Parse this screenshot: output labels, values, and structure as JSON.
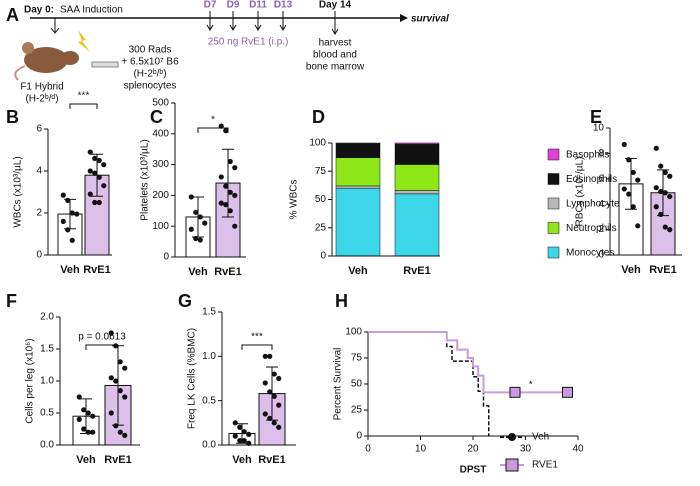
{
  "diagram": {
    "panel": "A",
    "day0_bold": "Day 0:",
    "day0_text": "SAA Induction",
    "days": [
      "D7",
      "D9",
      "D11",
      "D13"
    ],
    "day14": "Day 14",
    "survival": "survival",
    "treatment": "250 ng RvE1 (i.p.)",
    "harvest": [
      "harvest",
      "blood and",
      "bone marrow"
    ],
    "irradiation": [
      "300 Rads",
      "+ 6.5x10⁷ B6",
      "(H-2ᵇ/ᵇ)",
      "splenocytes"
    ],
    "mouse": [
      "F1 Hybrid",
      "(H-2ᵇ/ᵈ)"
    ]
  },
  "chart_data": [
    {
      "type": "bar",
      "panel": "B",
      "ylabel": "WBCs (x10³/µL)",
      "categories": [
        "Veh",
        "RvE1"
      ],
      "colors": [
        "#ffffff",
        "#dcc0ea"
      ],
      "values": [
        1.95,
        3.8
      ],
      "errors": [
        0.7,
        1.0
      ],
      "points": [
        [
          2.85,
          2.6,
          2.0,
          1.95,
          1.6,
          1.2,
          0.7
        ],
        [
          4.9,
          4.6,
          4.5,
          4.3,
          4.0,
          3.9,
          3.7,
          3.3,
          2.9,
          2.5,
          2.5
        ]
      ],
      "significance": "***",
      "ylim": [
        0,
        6
      ],
      "yticks": [
        0,
        2,
        4,
        6
      ]
    },
    {
      "type": "bar",
      "panel": "C",
      "ylabel": "Platelets (x10³/µL)",
      "categories": [
        "Veh",
        "RvE1"
      ],
      "colors": [
        "#ffffff",
        "#dcc0ea"
      ],
      "values": [
        130,
        240
      ],
      "errors": [
        65,
        110
      ],
      "points": [
        [
          195,
          145,
          130,
          110,
          90,
          60,
          55
        ],
        [
          425,
          410,
          310,
          290,
          260,
          230,
          210,
          200,
          175,
          170,
          150,
          100
        ]
      ],
      "significance": "*",
      "ylim": [
        0,
        500
      ],
      "yticks": [
        0,
        100,
        200,
        300,
        400,
        500
      ]
    },
    {
      "type": "stacked_bar",
      "panel": "D",
      "ylabel": "% WBCs",
      "categories": [
        "Veh",
        "RvE1"
      ],
      "series": [
        {
          "name": "Monocytes",
          "color": "#3dd6e8",
          "values": [
            60,
            55
          ]
        },
        {
          "name": "Lymphocytes",
          "color": "#b8b8b8",
          "values": [
            2,
            3
          ]
        },
        {
          "name": "Neutrophils",
          "color": "#8ee817",
          "values": [
            25,
            23
          ]
        },
        {
          "name": "Eosinophils",
          "color": "#111111",
          "values": [
            12.5,
            18
          ]
        },
        {
          "name": "Basophils",
          "color": "#e040d8",
          "values": [
            0.5,
            1
          ]
        }
      ],
      "legend_order": [
        4,
        3,
        1,
        2,
        0
      ],
      "ylim": [
        0,
        100
      ],
      "yticks": [
        0,
        25,
        50,
        75,
        100
      ]
    },
    {
      "type": "bar",
      "panel": "E",
      "ylabel": "RBCs (x10⁶/µL)",
      "categories": [
        "Veh",
        "RvE1"
      ],
      "colors": [
        "#ffffff",
        "#dcc0ea"
      ],
      "values": [
        5.6,
        4.9
      ],
      "errors": [
        2.0,
        1.8
      ],
      "points": [
        [
          8.7,
          7.5,
          6.5,
          5.9,
          5.2,
          4.8,
          3.8,
          2.3
        ],
        [
          8.4,
          7.0,
          6.5,
          6.2,
          5.3,
          5.0,
          4.9,
          4.6,
          3.8,
          3.2,
          2.2,
          2.0
        ]
      ],
      "ylim": [
        0,
        10
      ],
      "yticks": [
        0,
        2,
        4,
        6,
        8,
        10
      ]
    },
    {
      "type": "bar",
      "panel": "F",
      "ylabel": "Cells per leg (x10⁶)",
      "categories": [
        "Veh",
        "RvE1"
      ],
      "colors": [
        "#ffffff",
        "#dcc0ea"
      ],
      "values": [
        0.45,
        0.93
      ],
      "errors": [
        0.27,
        0.62
      ],
      "points": [
        [
          0.75,
          0.55,
          0.5,
          0.45,
          0.4,
          0.25,
          0.2,
          0.2
        ],
        [
          1.75,
          1.55,
          1.3,
          1.2,
          1.05,
          1.0,
          0.85,
          0.75,
          0.5,
          0.3,
          0.2,
          0.15
        ]
      ],
      "significance": "p = 0.0613",
      "ylim": [
        0,
        2
      ],
      "yticks": [
        {
          "value": 0,
          "label": "0.0"
        },
        {
          "value": 0.5,
          "label": "0.5"
        },
        {
          "value": 1,
          "label": "1.0"
        },
        {
          "value": 1.5,
          "label": "1.5"
        },
        {
          "value": 2,
          "label": "2.0"
        }
      ]
    },
    {
      "type": "bar",
      "panel": "G",
      "ylabel": "Freq LK Cells (%BMC)",
      "categories": [
        "Veh",
        "RvE1"
      ],
      "colors": [
        "#ffffff",
        "#dcc0ea"
      ],
      "values": [
        0.13,
        0.58
      ],
      "errors": [
        0.11,
        0.3
      ],
      "points": [
        [
          0.25,
          0.2,
          0.15,
          0.12,
          0.1,
          0.05,
          0.05,
          0.02
        ],
        [
          1.0,
          1.0,
          0.8,
          0.75,
          0.7,
          0.6,
          0.55,
          0.45,
          0.35,
          0.3,
          0.25,
          0.2
        ]
      ],
      "significance": "***",
      "ylim": [
        0,
        1.5
      ],
      "yticks": [
        {
          "value": 0,
          "label": "0.0"
        },
        {
          "value": 0.5,
          "label": "0.5"
        },
        {
          "value": 1,
          "label": "1.0"
        },
        {
          "value": 1.5,
          "label": "1.5"
        }
      ]
    },
    {
      "type": "line",
      "panel": "H",
      "ylabel": "Percent Survival",
      "xlabel": "DPST",
      "annotation": "*",
      "series": [
        {
          "name": "Veh",
          "color": "#111111",
          "x": [
            0,
            15,
            15,
            16,
            16,
            20,
            20,
            21,
            21,
            22,
            22,
            23,
            23
          ],
          "values": [
            100,
            100,
            86,
            86,
            72,
            72,
            57,
            57,
            43,
            43,
            29,
            29,
            0
          ]
        },
        {
          "name": "RVE1",
          "color": "#c89be0",
          "x": [
            0,
            15,
            15,
            17,
            17,
            19,
            19,
            20,
            20,
            21,
            21,
            22,
            22,
            38
          ],
          "values": [
            100,
            100,
            92,
            92,
            83,
            83,
            75,
            75,
            67,
            67,
            58,
            58,
            42,
            42
          ],
          "censored_x": [
            28,
            38
          ],
          "censored_values": [
            42,
            42
          ]
        }
      ],
      "xlim": [
        0,
        40
      ],
      "xticks": [
        0,
        10,
        20,
        30,
        40
      ],
      "ylim": [
        0,
        100
      ],
      "yticks": [
        0,
        25,
        50,
        75,
        100
      ]
    }
  ]
}
